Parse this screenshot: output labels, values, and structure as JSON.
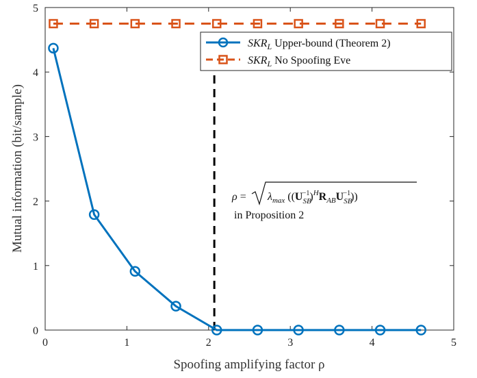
{
  "chart_data": {
    "type": "line",
    "xlabel": "Spoofing amplifying factor ρ",
    "ylabel": "Mutual information (bit/sample)",
    "xlim": [
      0,
      5
    ],
    "ylim": [
      0,
      5
    ],
    "xticks": [
      0,
      1,
      2,
      3,
      4,
      5
    ],
    "yticks": [
      0,
      1,
      2,
      3,
      4,
      5
    ],
    "xtick_labels": [
      "0",
      "1",
      "2",
      "3",
      "4",
      "5"
    ],
    "ytick_labels": [
      "0",
      "1",
      "2",
      "3",
      "4",
      "5"
    ],
    "grid": false,
    "legend_position": "top-right",
    "series": [
      {
        "name": "SKR_L Upper-bound (Theorem 2)",
        "color": "#0072BD",
        "marker": "circle",
        "line_style": "solid",
        "x": [
          0.1,
          0.6,
          1.1,
          1.6,
          2.1,
          2.6,
          3.1,
          3.6,
          4.1,
          4.6
        ],
        "y": [
          4.37,
          1.79,
          0.91,
          0.37,
          0.0,
          0.0,
          0.0,
          0.0,
          0.0,
          0.0
        ]
      },
      {
        "name": "SKR_L No Spoofing Eve",
        "color": "#D95319",
        "marker": "square",
        "line_style": "dashed",
        "x": [
          0.1,
          0.6,
          1.1,
          1.6,
          2.1,
          2.6,
          3.1,
          3.6,
          4.1,
          4.6
        ],
        "y": [
          4.75,
          4.75,
          4.75,
          4.75,
          4.75,
          4.75,
          4.75,
          4.75,
          4.75,
          4.75
        ]
      }
    ],
    "vline": {
      "x": 2.07,
      "color": "#000000",
      "line_style": "dashed"
    },
    "annotation": {
      "formula": "ρ = √(λ_max((U_SB⁻¹)^H R_AB U_SB⁻¹))",
      "text": "in Proposition 2"
    }
  }
}
